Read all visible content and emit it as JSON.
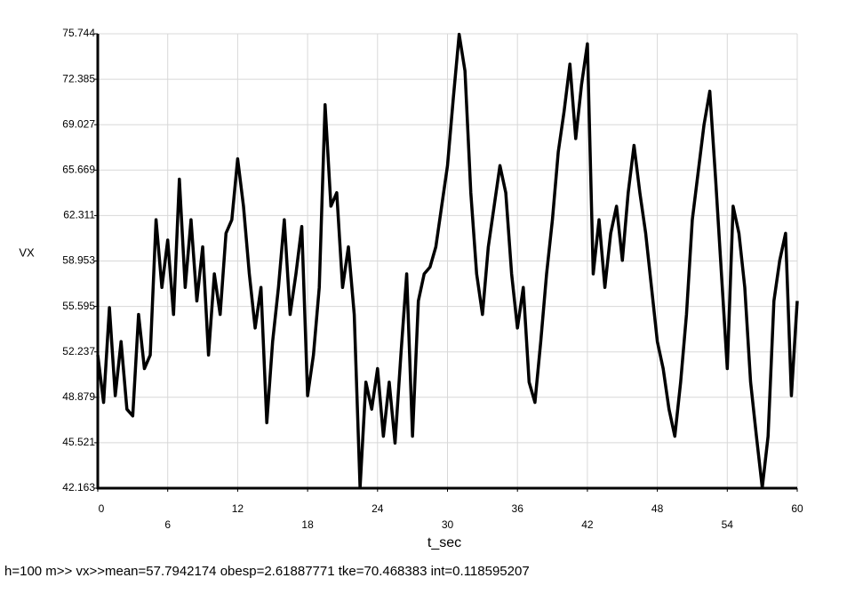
{
  "chart_data": {
    "type": "line",
    "y_label": "VX",
    "x_label": "t_sec",
    "footer": "h=100 m>> vx>>mean=57.7942174  obesp=2.61887771 tke=70.468383 int=0.118595207",
    "color": "#000000",
    "grid": true,
    "xlim": [
      0,
      60
    ],
    "xticks": [
      0,
      6,
      12,
      18,
      24,
      30,
      36,
      42,
      48,
      54,
      60
    ],
    "ylim": [
      42.163,
      75.744
    ],
    "yticks": [
      42.163,
      45.521,
      48.879,
      52.237,
      55.595,
      58.953,
      62.311,
      65.669,
      69.027,
      72.385,
      75.744
    ],
    "x": [
      0,
      0.5,
      1,
      1.5,
      2,
      2.5,
      3,
      3.5,
      4,
      4.5,
      5,
      5.5,
      6,
      6.5,
      7,
      7.5,
      8,
      8.5,
      9,
      9.5,
      10,
      10.5,
      11,
      11.5,
      12,
      12.5,
      13,
      13.5,
      14,
      14.5,
      15,
      15.5,
      16,
      16.5,
      17,
      17.5,
      18,
      18.5,
      19,
      19.5,
      20,
      20.5,
      21,
      21.5,
      22,
      22.5,
      23,
      23.5,
      24,
      24.5,
      25,
      25.5,
      26,
      26.5,
      27,
      27.5,
      28,
      28.5,
      29,
      29.5,
      30,
      30.5,
      31,
      31.5,
      32,
      32.5,
      33,
      33.5,
      34,
      34.5,
      35,
      35.5,
      36,
      36.5,
      37,
      37.5,
      38,
      38.5,
      39,
      39.5,
      40,
      40.5,
      41,
      41.5,
      42,
      42.5,
      43,
      43.5,
      44,
      44.5,
      45,
      45.5,
      46,
      46.5,
      47,
      47.5,
      48,
      48.5,
      49,
      49.5,
      50,
      50.5,
      51,
      51.5,
      52,
      52.5,
      53,
      53.5,
      54,
      54.5,
      55,
      55.5,
      56,
      56.5,
      57,
      57.5,
      58,
      58.5,
      59,
      59.5,
      60
    ],
    "values": [
      52,
      48.5,
      55.5,
      49,
      53,
      48,
      47.5,
      55,
      51,
      52,
      62,
      57,
      60.5,
      55,
      65,
      57,
      62,
      56,
      60,
      52,
      58,
      55,
      61,
      62,
      66.5,
      63,
      58,
      54,
      57,
      47,
      53,
      57,
      62,
      55,
      58,
      61.5,
      49,
      52,
      57,
      70.5,
      63,
      64,
      57,
      60,
      55,
      42.2,
      50,
      48,
      51,
      46,
      50,
      45.5,
      52,
      58,
      46,
      56,
      58,
      58.5,
      60,
      63,
      66,
      71,
      75.7,
      73,
      64,
      58,
      55,
      60,
      63,
      66,
      64,
      58,
      54,
      57,
      50,
      48.5,
      53,
      58,
      62,
      67,
      70,
      73.5,
      68,
      72,
      75,
      58,
      62,
      57,
      61,
      63,
      59,
      64,
      67.5,
      64,
      61,
      57,
      53,
      51,
      48,
      46,
      50,
      55,
      62,
      65.5,
      69,
      71.5,
      65,
      58,
      51,
      63,
      61,
      57,
      50,
      46,
      42.2,
      46,
      56,
      59,
      61,
      49,
      56
    ]
  }
}
